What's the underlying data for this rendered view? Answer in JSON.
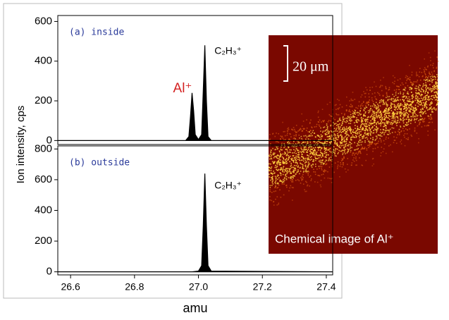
{
  "chart_data": [
    {
      "type": "area",
      "ylabel": "Ion intensity, cps",
      "panel_label": "(a) inside",
      "annotations": [
        {
          "text": "Al⁺",
          "x": 26.98,
          "y": 260,
          "color": "#d42020"
        },
        {
          "text": "C₂H₃⁺",
          "x": 27.05,
          "y": 450,
          "color": "#000000"
        }
      ],
      "x": [
        26.56,
        26.96,
        26.97,
        26.975,
        26.98,
        26.985,
        26.99,
        27.0,
        27.01,
        27.015,
        27.02,
        27.025,
        27.03,
        27.04,
        27.42
      ],
      "values": [
        0,
        0,
        20,
        120,
        240,
        150,
        30,
        5,
        30,
        250,
        480,
        200,
        20,
        0,
        0
      ],
      "color": "#000000",
      "xlim": [
        26.56,
        27.42
      ],
      "ylim": [
        -20,
        630
      ],
      "yticks": [
        0,
        200,
        400,
        600
      ]
    },
    {
      "type": "area",
      "xlabel": "amu",
      "panel_label": "(b) outside",
      "annotations": [
        {
          "text": "C₂H₃⁺",
          "x": 27.05,
          "y": 560,
          "color": "#000000"
        }
      ],
      "x": [
        26.56,
        26.98,
        27.0,
        27.01,
        27.015,
        27.02,
        27.025,
        27.03,
        27.04,
        27.42
      ],
      "values": [
        0,
        0,
        5,
        40,
        300,
        640,
        300,
        40,
        5,
        0
      ],
      "color": "#000000",
      "xlim": [
        26.56,
        27.42
      ],
      "ylim": [
        -20,
        820
      ],
      "yticks": [
        0,
        200,
        400,
        600,
        800
      ],
      "xticks": [
        {
          "value": 26.6,
          "label": "26.6"
        },
        {
          "value": 26.8,
          "label": "26.8"
        },
        {
          "value": 27.0,
          "label": "27.0"
        },
        {
          "value": 27.2,
          "label": "27.2"
        },
        {
          "value": 27.4,
          "label": "27.4"
        }
      ]
    }
  ],
  "image": {
    "scale_label": "20 μm",
    "caption": "Chemical image of Al⁺"
  }
}
